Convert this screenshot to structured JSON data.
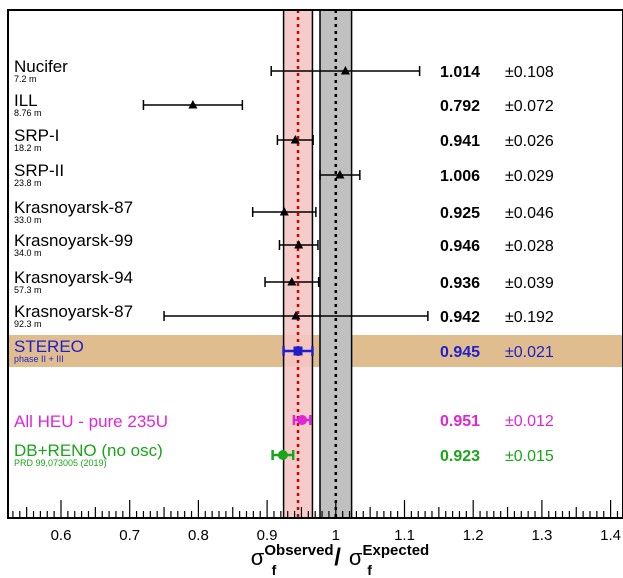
{
  "chart_data": {
    "type": "scatter",
    "subtype": "forest-plot",
    "xlim": [
      0.53,
      1.41
    ],
    "x_ticks": [
      "0.6",
      "0.7",
      "0.8",
      "0.9",
      "1",
      "1.1",
      "1.2",
      "1.3",
      "1.4"
    ],
    "x_tick_values": [
      0.6,
      0.7,
      0.8,
      0.9,
      1.0,
      1.1,
      1.2,
      1.3,
      1.4
    ],
    "xlabel": {
      "sigma": "σ",
      "sub": "f",
      "obs": "Observed",
      "slash": "/",
      "exp": "Expected"
    },
    "bands": {
      "expected": {
        "center": 1.0,
        "low": 0.977,
        "high": 1.023,
        "color": "#c0c0c0"
      },
      "stereo": {
        "center": 0.945,
        "low": 0.924,
        "high": 0.966,
        "color": "#f4c7c3"
      }
    },
    "series": [
      {
        "label": "Nucifer",
        "sub": "7.2 m",
        "x": 1.014,
        "xerr_low": 0.108,
        "xerr_high": 0.108,
        "value_text": "1.014",
        "err_text": "±0.108",
        "color": "#000000",
        "marker": "triangle"
      },
      {
        "label": "ILL",
        "sub": "8.76 m",
        "x": 0.792,
        "xerr_low": 0.072,
        "xerr_high": 0.072,
        "value_text": "0.792",
        "err_text": "±0.072",
        "color": "#000000",
        "marker": "triangle"
      },
      {
        "label": "SRP-I",
        "sub": "18.2 m",
        "x": 0.941,
        "xerr_low": 0.026,
        "xerr_high": 0.026,
        "value_text": "0.941",
        "err_text": "±0.026",
        "color": "#000000",
        "marker": "triangle"
      },
      {
        "label": "SRP-II",
        "sub": "23.8 m",
        "x": 1.006,
        "xerr_low": 0.029,
        "xerr_high": 0.029,
        "value_text": "1.006",
        "err_text": "±0.029",
        "color": "#000000",
        "marker": "triangle"
      },
      {
        "label": "Krasnoyarsk-87",
        "sub": "33.0 m",
        "x": 0.925,
        "xerr_low": 0.046,
        "xerr_high": 0.046,
        "value_text": "0.925",
        "err_text": "±0.046",
        "color": "#000000",
        "marker": "triangle"
      },
      {
        "label": "Krasnoyarsk-99",
        "sub": "34.0 m",
        "x": 0.946,
        "xerr_low": 0.028,
        "xerr_high": 0.028,
        "value_text": "0.946",
        "err_text": "±0.028",
        "color": "#000000",
        "marker": "triangle"
      },
      {
        "label": "Krasnoyarsk-94",
        "sub": "57.3 m",
        "x": 0.936,
        "xerr_low": 0.039,
        "xerr_high": 0.039,
        "value_text": "0.936",
        "err_text": "±0.039",
        "color": "#000000",
        "marker": "triangle"
      },
      {
        "label": "Krasnoyarsk-87",
        "sub": "92.3 m",
        "x": 0.942,
        "xerr_low": 0.192,
        "xerr_high": 0.192,
        "value_text": "0.942",
        "err_text": "±0.192",
        "color": "#000000",
        "marker": "triangle"
      },
      {
        "label": "STEREO",
        "sub": "phase II + III",
        "x": 0.945,
        "xerr_low": 0.021,
        "xerr_high": 0.021,
        "value_text": "0.945",
        "err_text": "±0.021",
        "color": "#1f1fcc",
        "marker": "square",
        "highlight": true,
        "highlight_color": "#dfbd8f"
      },
      {
        "label": "All HEU - pure 235U",
        "sub": "",
        "x": 0.951,
        "xerr_low": 0.012,
        "xerr_high": 0.012,
        "value_text": "0.951",
        "err_text": "±0.012",
        "color": "#e024d8",
        "marker": "circle"
      },
      {
        "label": "DB+RENO (no osc)",
        "sub": "PRD 99,073005 (2019)",
        "x": 0.923,
        "xerr_low": 0.015,
        "xerr_high": 0.015,
        "value_text": "0.923",
        "err_text": "±0.015",
        "color": "#1aa51a",
        "marker": "circle"
      }
    ]
  }
}
